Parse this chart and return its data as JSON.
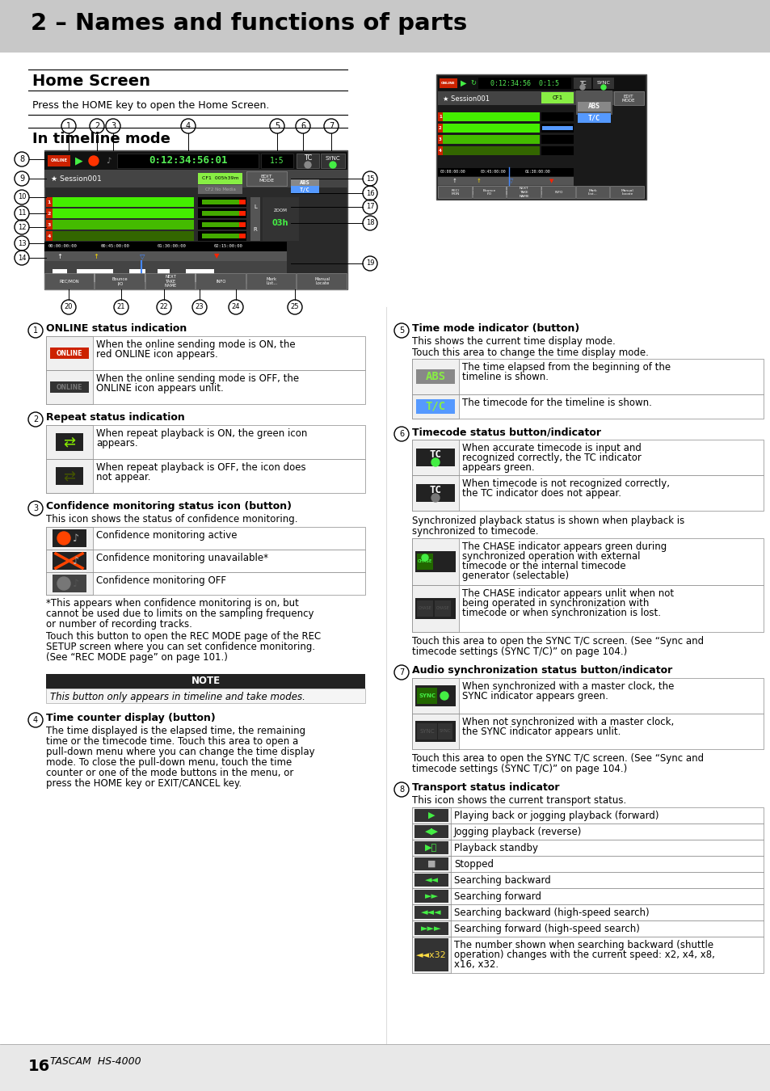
{
  "page_bg": "#ffffff",
  "header_bg": "#c8c8c8",
  "title": "2 – Names and functions of parts",
  "section1_title": "Home Screen",
  "section1_subtitle": "Press the HOME key to open the Home Screen.",
  "section2_title": "In timeline mode",
  "footer_num": "16",
  "footer_brand": "TASCAM  HS-4000",
  "note_label": "NOTE",
  "note_body": "This button only appears in timeline and take modes.",
  "left_items": [
    {
      "num": "1",
      "bold_title": "ONLINE status indication",
      "rows": [
        {
          "icon_type": "online_red",
          "text": "When the online sending mode is ON, the red ONLINE icon appears."
        },
        {
          "icon_type": "online_dark",
          "text": "When the online sending mode is OFF, the ONLINE icon appears unlit."
        }
      ]
    },
    {
      "num": "2",
      "bold_title": "Repeat status indication",
      "rows": [
        {
          "icon_type": "repeat_green",
          "text": "When repeat playback is ON, the green icon appears."
        },
        {
          "icon_type": "repeat_dark",
          "text": "When repeat playback is OFF, the icon does not appear."
        }
      ]
    },
    {
      "num": "3",
      "bold_title": "Confidence monitoring status icon (button)",
      "intro": "This icon shows the status of confidence monitoring.",
      "rows": [
        {
          "icon_type": "conf_active",
          "text": "Confidence monitoring active"
        },
        {
          "icon_type": "conf_unavail",
          "text": "Confidence monitoring unavailable*"
        },
        {
          "icon_type": "conf_off",
          "text": "Confidence monitoring OFF"
        }
      ],
      "footnote1": "*This appears when confidence monitoring is on, but cannot be used due to limits on the sampling frequency or number of recording tracks.",
      "footnote2": "Touch this button to open the REC MODE page of the REC SETUP screen where you can set confidence monitoring. (See “REC MODE page” on page 101.)"
    },
    {
      "num": "4",
      "bold_title": "Time counter display (button)",
      "intro": "The time displayed is the elapsed time, the remaining time or the timecode time. Touch this area to open a pull-down menu where you can change the time display mode. To close the pull-down menu, touch the time counter or one of the mode buttons in the menu, or press the HOME key or EXIT/CANCEL key."
    }
  ],
  "right_items": [
    {
      "num": "5",
      "bold_title": "Time mode indicator (button)",
      "intro1": "This shows the current time display mode.",
      "intro2": "Touch this area to change the time display mode.",
      "rows": [
        {
          "icon_type": "abs",
          "text": "The time elapsed from the beginning of the timeline is shown."
        },
        {
          "icon_type": "tc_blue",
          "text": "The timecode for the timeline is shown."
        }
      ]
    },
    {
      "num": "6",
      "bold_title": "Timecode status button/indicator",
      "rows": [
        {
          "icon_type": "tc_green",
          "text": "When accurate timecode is input and recognized correctly, the TC indicator appears green."
        },
        {
          "icon_type": "tc_dark",
          "text": "When timecode is not recognized correctly, the TC indicator does not appear."
        }
      ],
      "sync_intro": "Synchronized playback status is shown when playback is synchronized to timecode.",
      "sync_rows": [
        {
          "icon_type": "chase_green",
          "text": "The CHASE indicator appears green during synchronized operation with external timecode or the internal timecode generator (selectable)"
        },
        {
          "icon_type": "chase_dark",
          "text": "The CHASE indicator appears unlit when not being operated in synchronization with timecode or when synchronization is lost."
        }
      ],
      "extra": "Touch this area to open the SYNC T/C screen. (See “Sync and timecode settings (SYNC T/C)” on page 104.)"
    },
    {
      "num": "7",
      "bold_title": "Audio synchronization status button/indicator",
      "rows": [
        {
          "icon_type": "sync_green",
          "text": "When synchronized with a master clock, the SYNC indicator appears green."
        },
        {
          "icon_type": "sync_dark",
          "text": "When not synchronized with a master clock, the SYNC indicator appears unlit."
        }
      ],
      "extra": "Touch this area to open the SYNC T/C screen. (See “Sync and timecode settings (SYNC T/C)” on page 104.)"
    },
    {
      "num": "8",
      "bold_title": "Transport status indicator",
      "intro": "This icon shows the current transport status.",
      "transport_rows": [
        {
          "icon_type": "play_fwd",
          "text": "Playing back or jogging playback (forward)"
        },
        {
          "icon_type": "play_rev",
          "text": "Jogging playback (reverse)"
        },
        {
          "icon_type": "play_standby",
          "text": "Playback standby"
        },
        {
          "icon_type": "stopped",
          "text": "Stopped"
        },
        {
          "icon_type": "search_back",
          "text": "Searching backward"
        },
        {
          "icon_type": "search_fwd",
          "text": "Searching forward"
        },
        {
          "icon_type": "search_bk_hi",
          "text": "Searching backward (high-speed search)"
        },
        {
          "icon_type": "search_fw_hi",
          "text": "Searching forward (high-speed search)"
        },
        {
          "icon_type": "shuttle",
          "text": "The number shown when searching backward (shuttle operation) changes with the current speed: x2, x4, x8, x16, x32."
        }
      ]
    }
  ]
}
